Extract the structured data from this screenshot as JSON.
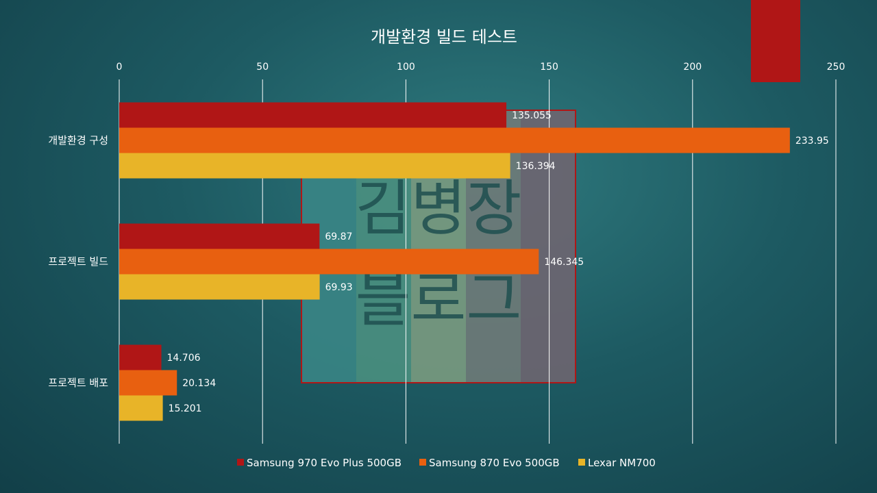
{
  "chart_data": {
    "type": "bar",
    "orientation": "horizontal",
    "title": "개발환경 빌드 테스트",
    "categories": [
      "개발환경 구성",
      "프로젝트 빌드",
      "프로젝트 배포"
    ],
    "series": [
      {
        "name": "Samsung 970 Evo Plus 500GB",
        "color": "#b01616",
        "values": [
          135.055,
          69.87,
          14.706
        ],
        "labels": [
          "135.055",
          "69.87",
          "14.706"
        ]
      },
      {
        "name": "Samsung 870 Evo 500GB",
        "color": "#e86010",
        "values": [
          233.95,
          146.345,
          20.134
        ],
        "labels": [
          "233.95",
          "146.345",
          "20.134"
        ]
      },
      {
        "name": "Lexar NM700",
        "color": "#e8b428",
        "values": [
          136.394,
          69.93,
          15.201
        ],
        "labels": [
          "136.394",
          "69.93",
          "15.201"
        ]
      }
    ],
    "xlim": [
      0,
      250
    ],
    "x_ticks": [
      0,
      50,
      100,
      150,
      200,
      250
    ],
    "x_tick_labels": [
      "0",
      "50",
      "100",
      "150",
      "200",
      "250"
    ],
    "xaxis_position": "top",
    "grid": true,
    "legend": "bottom"
  },
  "watermark": {
    "text_line1": "김병장",
    "text_line2": "블로그",
    "stripe_colors": [
      "#3a8585",
      "#4a8f80",
      "#7a9a80",
      "#6f7a78",
      "#6e6570"
    ],
    "border_color": "#b01616"
  },
  "decor": {
    "corner_block_color": "#b01616"
  }
}
